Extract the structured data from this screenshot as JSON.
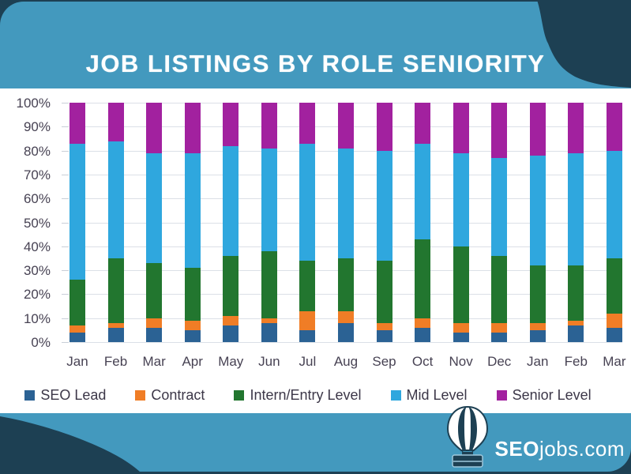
{
  "page": {
    "title": "JOB LISTINGS BY ROLE SENIORITY",
    "colors": {
      "background_navy": "#1d4053",
      "panel_teal": "#4399be",
      "chart_background": "#ffffff",
      "gridline": "#dbe0e7",
      "axis_text": "#474253"
    }
  },
  "chart_data": {
    "type": "bar",
    "stacked": true,
    "units": "percent",
    "title": "JOB LISTINGS BY ROLE SENIORITY",
    "categories": [
      "Jan",
      "Feb",
      "Mar",
      "Apr",
      "May",
      "Jun",
      "Jul",
      "Aug",
      "Sep",
      "Oct",
      "Nov",
      "Dec",
      "Jan",
      "Feb",
      "Mar"
    ],
    "y_tick_labels": [
      "100%",
      "90%",
      "80%",
      "70%",
      "60%",
      "50%",
      "40%",
      "30%",
      "20%",
      "10%",
      "0%"
    ],
    "ylim": [
      0,
      100
    ],
    "grid": true,
    "legend_position": "bottom",
    "series": [
      {
        "name": "SEO Lead",
        "color": "#2b6294",
        "values": [
          4,
          6,
          6,
          5,
          7,
          8,
          5,
          8,
          5,
          6,
          4,
          4,
          5,
          7,
          6
        ]
      },
      {
        "name": "Contract",
        "color": "#f07d26",
        "values": [
          3,
          2,
          4,
          4,
          4,
          2,
          8,
          5,
          3,
          4,
          4,
          4,
          3,
          2,
          6
        ]
      },
      {
        "name": "Intern/Entry Level",
        "color": "#22762f",
        "values": [
          19,
          27,
          23,
          22,
          25,
          28,
          21,
          22,
          26,
          33,
          32,
          28,
          24,
          23,
          23
        ]
      },
      {
        "name": "Mid Level",
        "color": "#2fa7de",
        "values": [
          57,
          49,
          46,
          48,
          46,
          43,
          49,
          46,
          46,
          40,
          39,
          41,
          46,
          47,
          45
        ]
      },
      {
        "name": "Senior Level",
        "color": "#a2219f",
        "values": [
          17,
          16,
          21,
          21,
          18,
          19,
          17,
          19,
          20,
          17,
          21,
          23,
          22,
          21,
          20
        ]
      }
    ]
  },
  "footer": {
    "logo_bold": "SEO",
    "logo_rest": "jobs.com",
    "logo_icon": "hot-air-balloon-with-briefcase"
  }
}
